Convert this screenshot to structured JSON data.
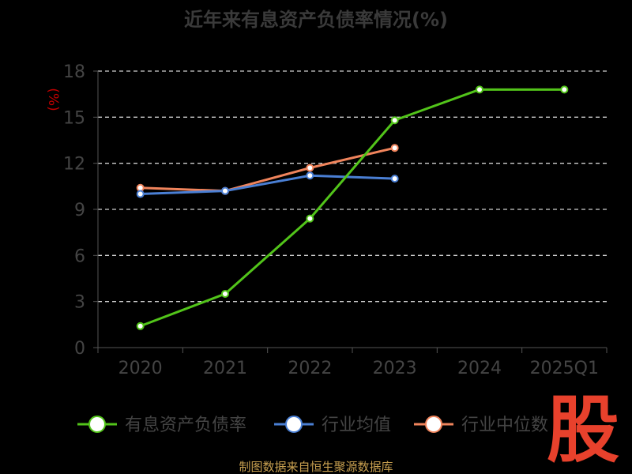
{
  "chart_data": {
    "type": "line",
    "title": "近年来有息资产负债率情况(%)",
    "ylabel": "(%)",
    "categories": [
      "2020",
      "2021",
      "2022",
      "2023",
      "2024",
      "2025Q1"
    ],
    "ylim": [
      0,
      18
    ],
    "yticks": [
      0,
      3,
      6,
      9,
      12,
      15,
      18
    ],
    "grid": true,
    "legend_position": "bottom",
    "series": [
      {
        "name": "有息资产负债率",
        "color": "#52c41a",
        "values": [
          1.4,
          3.5,
          8.4,
          14.8,
          16.8,
          16.8
        ]
      },
      {
        "name": "行业均值",
        "color": "#4a7fd4",
        "values": [
          10.0,
          10.2,
          11.2,
          11.0,
          null,
          null
        ]
      },
      {
        "name": "行业中位数",
        "color": "#f0845c",
        "values": [
          10.4,
          10.2,
          11.7,
          13.0,
          null,
          null
        ]
      }
    ]
  },
  "source_text": "制图数据来自恒生聚源数据库",
  "watermark_text": "股"
}
